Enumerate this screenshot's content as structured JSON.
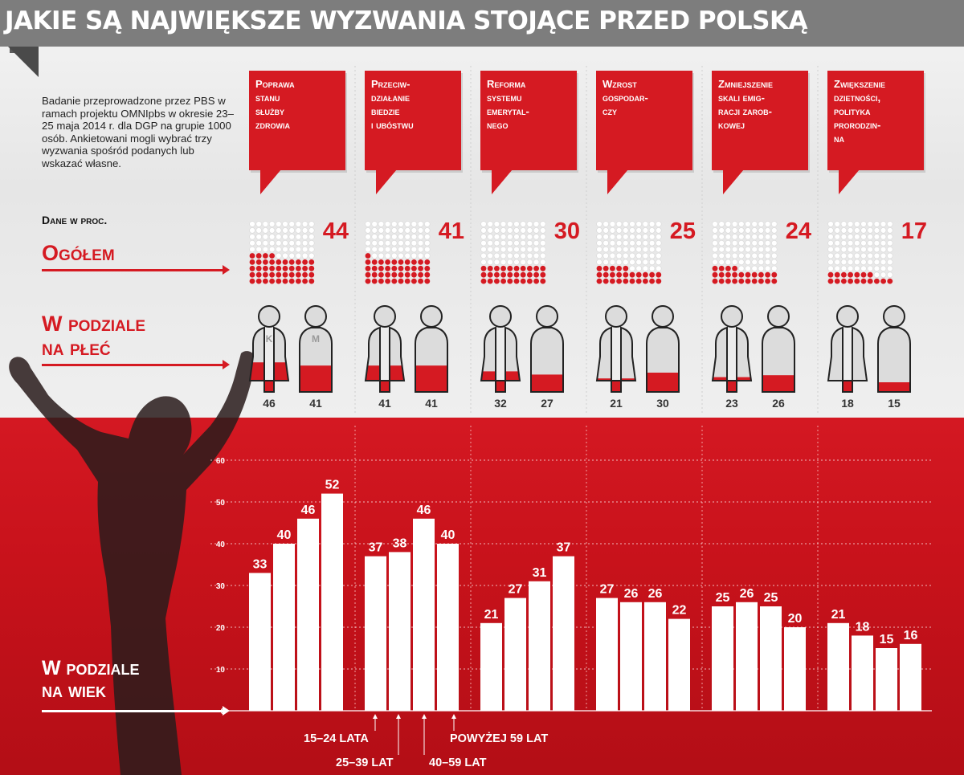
{
  "header": {
    "title": "JAKIE SĄ NAJWIĘKSZE WYZWANIA STOJĄCE PRZED POLSKĄ"
  },
  "intro": {
    "text": "Badanie przeprowadzone przez PBS w ramach projektu OMNIpbs w okresie 23–25 maja 2014 r. dla DGP na grupie 1000 osób. Ankietowani mogli wybrać trzy wyzwania spośród podanych lub wskazać własne."
  },
  "dane_label": "Dane w proc.",
  "sections": {
    "ogolem": "Ogółem",
    "plec_line1": "W podziale",
    "plec_line2": "na płeć",
    "wiek_line1": "W podziale",
    "wiek_line2": "na wiek"
  },
  "gender_markers": {
    "female": "K",
    "male": "M"
  },
  "age_group_notes": [
    "15–24 LATA",
    "25–39 LAT",
    "40–59 LAT",
    "POWYŻEJ 59 LAT"
  ],
  "colors": {
    "red": "#d51a22",
    "dark_red": "#b30e16",
    "grey_header": "#7d7d7d",
    "dot_empty": "#ffffff"
  },
  "chart_data": {
    "type": "bar",
    "categories": [
      "Poprawa stanu służby zdrowia",
      "Przeciwdziałanie biedzie i ubóstwu",
      "Reforma systemu emerytalnego",
      "Wzrost gospodarczy",
      "Zmniejszenie skali emigracji zarobkowej",
      "Zwiększenie dzietności, polityka prorodzinna"
    ],
    "category_labels": [
      "Poprawa\nstanu\nsłużby\nzdrowia",
      "Przeciw-\ndziałanie\nbiedzie\ni ubóstwu",
      "Reforma\nsystemu\nemerytal-\nnego",
      "Wzrost\ngospodar-\nczy",
      "Zmniejszenie\nskali emig-\nracji zarob-\nkowej",
      "Zwiększenie\ndzietności,\npolityka\nprorodzin-\nna"
    ],
    "overall": [
      44,
      41,
      30,
      25,
      24,
      17
    ],
    "gender": {
      "female": [
        46,
        41,
        32,
        21,
        23,
        18
      ],
      "male": [
        41,
        41,
        27,
        30,
        26,
        15
      ]
    },
    "age_groups": [
      "15–24 lata",
      "25–39 lat",
      "40–59 lat",
      "powyżej 59 lat"
    ],
    "age": [
      [
        33,
        40,
        46,
        52
      ],
      [
        37,
        38,
        46,
        40
      ],
      [
        21,
        27,
        31,
        37
      ],
      [
        27,
        26,
        26,
        22
      ],
      [
        25,
        26,
        25,
        20
      ],
      [
        21,
        18,
        15,
        16
      ]
    ],
    "ylim": [
      0,
      60
    ],
    "yticks": [
      0,
      10,
      20,
      30,
      40,
      50,
      60
    ]
  }
}
